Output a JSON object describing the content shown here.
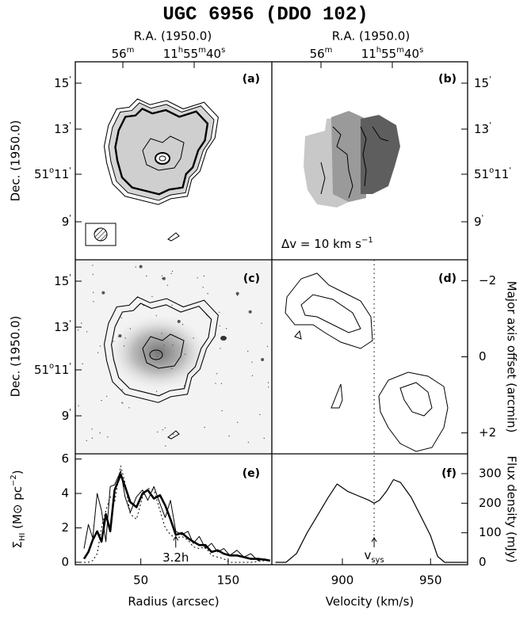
{
  "title": "UGC 6956 (DDO 102)",
  "maps": {
    "ra_label": "R.A. (1950.0)",
    "ra_ticks": [
      [
        "56",
        "m"
      ],
      [
        "11",
        "h",
        "55",
        "m",
        "40",
        "s"
      ]
    ],
    "dec_label": "Dec. (1950.0)",
    "dec_ticks": [
      [
        "15",
        "'"
      ],
      [
        "13",
        "'"
      ],
      [
        "51",
        "o",
        "11",
        "'"
      ],
      [
        "9",
        "'"
      ]
    ],
    "panel_labels": [
      "(a)",
      "(b)",
      "(c)"
    ],
    "velocity_bar": [
      "Δv = 10 km s",
      "−1"
    ]
  },
  "chart_data": [
    {
      "type": "contour",
      "panel_label": "(d)",
      "y_label": "Major axis offset (arcmin)",
      "ylim": [
        -2.55,
        2.55
      ],
      "y_inverted": true,
      "yticks": [
        {
          "value": -2,
          "label": "−2"
        },
        0,
        {
          "value": 2,
          "label": "+2"
        }
      ]
    },
    {
      "type": "line",
      "panel_label": "(e)",
      "x_label": "Radius (arcsec)",
      "y_label": [
        "Σ",
        "HI",
        " (M",
        "⊙",
        " pc",
        "−2",
        ")"
      ],
      "xlim": [
        -25,
        200
      ],
      "xticks": [
        50,
        150
      ],
      "ylim": [
        -0.14,
        6.3
      ],
      "yticks": [
        0,
        2,
        4,
        6
      ],
      "x": [
        -15,
        -10,
        -5,
        0,
        5,
        10,
        15,
        20,
        27,
        32,
        38,
        45,
        52,
        58,
        65,
        72,
        78,
        84,
        90,
        97,
        104,
        110,
        117,
        124,
        131,
        138,
        145,
        152,
        160,
        168,
        176,
        184,
        192,
        198
      ],
      "series": [
        {
          "color": "#000",
          "width": 2.6,
          "dash": "none",
          "values": [
            0.2,
            0.6,
            1.3,
            1.8,
            1.2,
            2.8,
            1.8,
            4.2,
            5.1,
            4.4,
            3.5,
            3.2,
            4.0,
            4.2,
            3.7,
            3.9,
            3.3,
            2.5,
            1.6,
            1.7,
            1.4,
            1.2,
            1.0,
            1.0,
            0.6,
            0.7,
            0.5,
            0.4,
            0.4,
            0.3,
            0.2,
            0.2,
            0.15,
            0.1
          ]
        },
        {
          "color": "#000",
          "width": 1,
          "dash": "none",
          "values": [
            0.8,
            2.2,
            1.4,
            4.0,
            3.0,
            1.2,
            4.4,
            4.5,
            5.3,
            3.8,
            2.9,
            3.8,
            4.2,
            3.6,
            4.4,
            3.4,
            2.6,
            3.6,
            1.8,
            1.6,
            1.8,
            1.1,
            1.5,
            0.8,
            1.1,
            0.6,
            0.8,
            0.4,
            0.7,
            0.3,
            0.5,
            0.1,
            0.2,
            0.1
          ]
        },
        {
          "color": "#000",
          "width": 1,
          "dash": "2 3",
          "values": [
            0,
            0,
            0.1,
            0.5,
            2.0,
            3.0,
            3.8,
            3.5,
            5.6,
            4.6,
            2.8,
            2.5,
            3.8,
            4.3,
            4.2,
            3.0,
            2.0,
            1.6,
            1.4,
            1.5,
            1.3,
            0.9,
            0.8,
            0.9,
            0.4,
            0.3,
            0.2,
            0,
            0,
            0,
            0,
            0.05,
            0.1,
            0.1
          ]
        }
      ],
      "annotation": {
        "text": "3.2h",
        "x": 90,
        "y": 1.5
      }
    },
    {
      "type": "line",
      "panel_label": "(f)",
      "x_label": "Velocity (km/s)",
      "y_label": "Flux density (mJy)",
      "xlim": [
        860,
        971
      ],
      "xticks": [
        900,
        950
      ],
      "ylim": [
        -8,
        367
      ],
      "yticks": [
        0,
        100,
        200,
        300
      ],
      "y_side": "right",
      "x": [
        862,
        868,
        874,
        880,
        886,
        892,
        897,
        903,
        909,
        915,
        918,
        921,
        925,
        929,
        933,
        939,
        945,
        950,
        954,
        958,
        964,
        970
      ],
      "values": [
        0,
        0,
        30,
        100,
        160,
        220,
        265,
        240,
        225,
        210,
        200,
        210,
        240,
        280,
        270,
        220,
        150,
        90,
        20,
        0,
        0,
        0
      ],
      "color": "#000",
      "vsys": 918,
      "vsys_label": [
        "v",
        "sys"
      ]
    }
  ]
}
